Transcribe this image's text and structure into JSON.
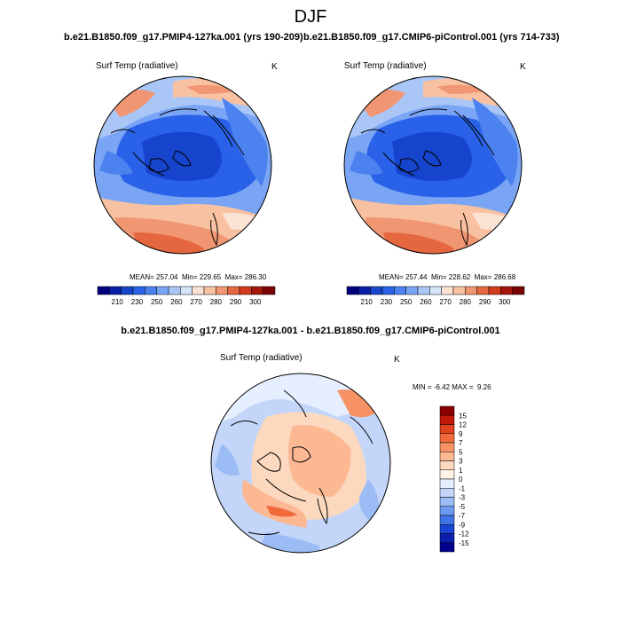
{
  "title": "DJF",
  "panels": [
    {
      "title": "b.e21.B1850.f09_g17.PMIP4-127ka.001 (yrs 190-209)",
      "variable": "Surf Temp (radiative)",
      "units": "K",
      "stats": {
        "mean": "257.04",
        "min": "229.65",
        "max": "286.30"
      }
    },
    {
      "title": "b.e21.B1850.f09_g17.CMIP6-piControl.001 (yrs 714-733)",
      "variable": "Surf Temp (radiative)",
      "units": "K",
      "stats": {
        "mean": "257.44",
        "min": "228.62",
        "max": "286.68"
      }
    }
  ],
  "labels": {
    "mean": "MEAN=",
    "min": "Min=",
    "max": "Max=",
    "dmin": "MIN =",
    "dmax": "MAX ="
  },
  "abs_colorbar": {
    "colors": [
      "#00007f",
      "#0a1fa8",
      "#1744cc",
      "#2962e8",
      "#4b82f0",
      "#7aa5f5",
      "#a9c6f7",
      "#d6e4f8",
      "#fbe3d3",
      "#f8c1a2",
      "#f19673",
      "#e5673f",
      "#d23a1a",
      "#a6150a",
      "#7a0403"
    ],
    "tick_labels": [
      "210",
      "230",
      "250",
      "260",
      "270",
      "280",
      "290",
      "300"
    ]
  },
  "difference": {
    "title": "b.e21.B1850.f09_g17.PMIP4-127ka.001 - b.e21.B1850.f09_g17.CMIP6-piControl.001",
    "variable": "Surf Temp (radiative)",
    "units": "K",
    "min": "-6.42",
    "max": "9.26",
    "colorbar": {
      "colors": [
        "#8b0000",
        "#c21807",
        "#e0431e",
        "#f06a3c",
        "#f79266",
        "#fbb893",
        "#fcd8be",
        "#fff2e8",
        "#e6efff",
        "#c3d6fa",
        "#9bbcf5",
        "#6d9bef",
        "#3f73e6",
        "#1a45d4",
        "#0b1fae",
        "#00008b"
      ],
      "tick_labels": [
        "15",
        "12",
        "9",
        "7",
        "5",
        "3",
        "1",
        "0",
        "-1",
        "-3",
        "-5",
        "-7",
        "-9",
        "-12",
        "-15"
      ]
    }
  }
}
